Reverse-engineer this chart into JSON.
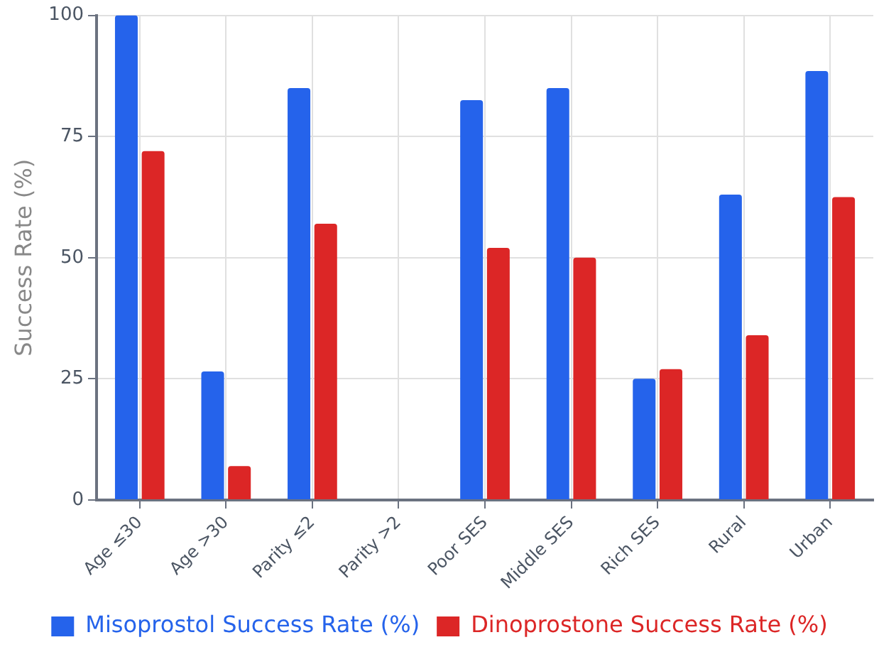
{
  "chart_data": {
    "type": "bar",
    "ylabel": "Success Rate (%)",
    "categories": [
      "Age ≤30",
      "Age >30",
      "Parity ≤2",
      "Parity >2",
      "Poor SES",
      "Middle SES",
      "Rich SES",
      "Rural",
      "Urban"
    ],
    "series": [
      {
        "name": "Misoprostol Success Rate (%)",
        "color": "#2563eb",
        "values": [
          100,
          26.5,
          85,
          null,
          82.5,
          85,
          25,
          63,
          88.5
        ]
      },
      {
        "name": "Dinoprostone Success Rate (%)",
        "color": "#dc2626",
        "values": [
          72,
          7,
          57,
          null,
          52,
          50,
          27,
          34,
          62.5
        ]
      }
    ],
    "ylim": [
      0,
      100
    ],
    "yticks": [
      0,
      25,
      50,
      75,
      100
    ],
    "grid": true,
    "legend": "bottom"
  }
}
